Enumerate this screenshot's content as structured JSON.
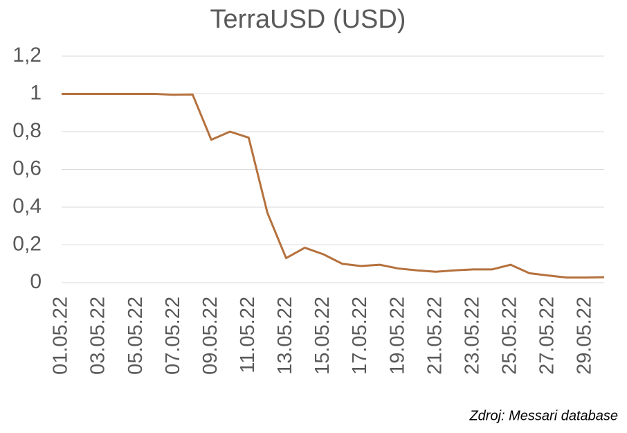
{
  "chart_data": {
    "type": "line",
    "title": "TerraUSD (USD)",
    "categories": [
      "01.05.22",
      null,
      "03.05.22",
      null,
      "05.05.22",
      null,
      "07.05.22",
      null,
      "09.05.22",
      null,
      "11.05.22",
      null,
      "13.05.22",
      null,
      "15.05.22",
      null,
      "17.05.22",
      null,
      "19.05.22",
      null,
      "21.05.22",
      null,
      "23.05.22",
      null,
      "25.05.22",
      null,
      "27.05.22",
      null,
      "29.05.22",
      null
    ],
    "series": [
      {
        "name": "TerraUSD",
        "color": "#b5713d",
        "values": [
          1.0,
          1.0,
          1.0,
          1.0,
          1.0,
          1.0,
          0.995,
          0.997,
          0.757,
          0.8,
          0.768,
          0.37,
          0.13,
          0.185,
          0.15,
          0.1,
          0.088,
          0.095,
          0.075,
          0.065,
          0.058,
          0.065,
          0.07,
          0.07,
          0.095,
          0.05,
          0.038,
          0.027,
          0.027,
          0.029
        ]
      }
    ],
    "ylim": [
      0,
      1.2
    ],
    "yticks": [
      0,
      {
        "value": 0.2,
        "label": "0,2"
      },
      {
        "value": 0.4,
        "label": "0,4"
      },
      {
        "value": 0.6,
        "label": "0,6"
      },
      {
        "value": 0.8,
        "label": "0,8"
      },
      1,
      {
        "value": 1.2,
        "label": "1,2"
      }
    ],
    "grid": true,
    "source": "Zdroj: Messari database"
  }
}
